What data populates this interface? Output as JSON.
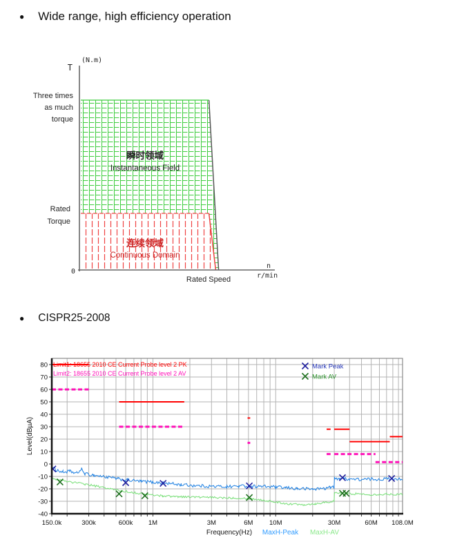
{
  "page": {
    "background": "#ffffff"
  },
  "bullets": [
    {
      "label": "Wide range, high efficiency operation"
    },
    {
      "label": "CISPR25-2008"
    }
  ],
  "torque_figure": {
    "axis_t_label": "T",
    "axis_t_unit": "(N.m)",
    "y_label_top_lines": [
      "Three times",
      "as much",
      "torque"
    ],
    "y_label_rated_lines": [
      "Rated",
      "Torque"
    ],
    "origin_label": "0",
    "x_label_rated": "Rated Speed",
    "x_axis_symbol": "n",
    "x_axis_unit": "r/min",
    "region_instantaneous": {
      "label_cn": "瞬时领域",
      "label_en": "Instantaneous Field",
      "hatch_color": "#3ecc3e",
      "text_color": "#222222"
    },
    "region_continuous": {
      "label_cn": "连续领域",
      "label_en": "Continuous Domain",
      "hatch_color": "#ee4040",
      "text_color": "#cc2222"
    },
    "axis_color": "#666666",
    "boundary_color": "#555555"
  },
  "emc_chart": {
    "limit1_label": "Limit1: 18655 2010 CE Current Probe level 2 PK",
    "limit2_label": "Limit2: 18655 2010 CE Current Probe level 2 AV",
    "legend": [
      {
        "label": "Mark Peak",
        "color": "#2233b8"
      },
      {
        "label": "Mark AV",
        "color": "#2a8f2a"
      }
    ],
    "y_axis_label": "Level(dBµA)",
    "x_axis_label": "Frequency(Hz)",
    "trace_labels": [
      {
        "label": "MaxH-Peak",
        "color": "#2f9bff"
      },
      {
        "label": "MaxH-AV",
        "color": "#8ae88a"
      }
    ],
    "grid_color": "#b3b3b3",
    "border_color": "#8a8a8a"
  },
  "chart_data": [
    {
      "type": "area",
      "title": "Torque vs speed operating regions",
      "xlabel": "n r/min",
      "ylabel": "T (N.m)",
      "x_unit": "fraction of axis length, rated speed = 0.70",
      "y_unit": "multiples of rated torque",
      "regions": [
        {
          "name": "瞬时领域 / Instantaneous Field",
          "torque_top": 3,
          "torque_bottom": 1,
          "envelope": [
            [
              0.007,
              3
            ],
            [
              0.67,
              3
            ],
            [
              0.72,
              0
            ]
          ]
        },
        {
          "name": "连续领域 / Continuous Domain",
          "torque_top": 1,
          "torque_bottom": 0,
          "envelope": [
            [
              0.007,
              1
            ],
            [
              0.67,
              1
            ],
            [
              0.705,
              0
            ]
          ]
        }
      ],
      "key_points": {
        "max_torque_multiple": 3,
        "rated_torque_multiple": 1,
        "rated_speed_fraction": 0.7
      }
    },
    {
      "type": "line",
      "title": "CISPR25-2008 conducted emissions",
      "xlabel": "Frequency(Hz)",
      "ylabel": "Level(dBµA)",
      "x_scale": "log",
      "x_unit": "MHz",
      "x_range": [
        0.15,
        108
      ],
      "x_ticks": [
        {
          "v": 0.15,
          "label": "150.0k"
        },
        {
          "v": 0.3,
          "label": "300k"
        },
        {
          "v": 0.6,
          "label": "600k"
        },
        {
          "v": 1,
          "label": "1M"
        },
        {
          "v": 3,
          "label": "3M"
        },
        {
          "v": 6,
          "label": "6M"
        },
        {
          "v": 10,
          "label": "10M"
        },
        {
          "v": 30,
          "label": "30M"
        },
        {
          "v": 60,
          "label": "60M"
        },
        {
          "v": 108,
          "label": "108.0M"
        }
      ],
      "y_range": [
        -40,
        85
      ],
      "y_ticks": [
        80,
        70,
        60,
        50,
        40,
        30,
        20,
        10,
        0,
        -10,
        -20,
        -30,
        -40
      ],
      "grid": true,
      "limits": [
        {
          "name": "Limit1: 18655 2010 CE Current Probe level 2 PK",
          "color": "#ff0000",
          "style": "solid",
          "segments": [
            [
              0.15,
              0.3,
              80
            ],
            [
              0.53,
              1.8,
              50
            ],
            [
              5.9,
              6.2,
              37
            ],
            [
              26,
              28,
              28
            ],
            [
              30,
              40,
              28
            ],
            [
              40,
              85,
              18
            ],
            [
              85,
              108,
              22
            ]
          ]
        },
        {
          "name": "Limit2: 18655 2010 CE Current Probe level 2 AV",
          "color": "#ff10b8",
          "style": "dashed",
          "segments": [
            [
              0.15,
              0.3,
              60
            ],
            [
              0.53,
              1.8,
              30
            ],
            [
              5.9,
              6.2,
              17
            ],
            [
              26,
              28,
              8
            ],
            [
              30,
              65,
              8
            ],
            [
              65,
              108,
              1.5
            ]
          ]
        }
      ],
      "series": [
        {
          "name": "MaxH-Peak",
          "color": "#2b87e3",
          "noise_db": 1.3,
          "points": [
            [
              0.15,
              -3
            ],
            [
              0.165,
              -5
            ],
            [
              0.185,
              -6.5
            ],
            [
              0.21,
              -6
            ],
            [
              0.24,
              -7.5
            ],
            [
              0.262,
              -4.2
            ],
            [
              0.28,
              -8
            ],
            [
              0.33,
              -9
            ],
            [
              0.42,
              -10.5
            ],
            [
              0.52,
              -12
            ],
            [
              0.62,
              -13
            ],
            [
              0.8,
              -14
            ],
            [
              1.0,
              -14.6
            ],
            [
              1.3,
              -15.6
            ],
            [
              1.7,
              -16.6
            ],
            [
              2.2,
              -17.4
            ],
            [
              3,
              -18
            ],
            [
              4,
              -18.2
            ],
            [
              5,
              -17.8
            ],
            [
              6,
              -17.6
            ],
            [
              7,
              -18
            ],
            [
              8.5,
              -18.2
            ],
            [
              10,
              -18.6
            ],
            [
              12,
              -19.2
            ],
            [
              15,
              -19.8
            ],
            [
              20,
              -20.2
            ],
            [
              25,
              -19.6
            ],
            [
              28,
              -18.8
            ],
            [
              29.9,
              -18.8
            ],
            [
              30.1,
              -12
            ],
            [
              33,
              -11.4
            ],
            [
              40,
              -12
            ],
            [
              50,
              -12.6
            ],
            [
              60,
              -12.2
            ],
            [
              75,
              -12.2
            ],
            [
              90,
              -11.6
            ],
            [
              108,
              -12
            ]
          ]
        },
        {
          "name": "MaxH-AV",
          "color": "#7ee07e",
          "noise_db": 0.8,
          "points": [
            [
              0.15,
              -12
            ],
            [
              0.18,
              -13.2
            ],
            [
              0.22,
              -14.6
            ],
            [
              0.28,
              -16.2
            ],
            [
              0.36,
              -18.2
            ],
            [
              0.45,
              -20
            ],
            [
              0.55,
              -21.6
            ],
            [
              0.7,
              -23
            ],
            [
              0.9,
              -24.6
            ],
            [
              1.2,
              -25.6
            ],
            [
              1.6,
              -26.2
            ],
            [
              2.2,
              -26.6
            ],
            [
              3,
              -27
            ],
            [
              4.5,
              -27.2
            ],
            [
              6,
              -27.6
            ],
            [
              8,
              -29.2
            ],
            [
              10,
              -30.6
            ],
            [
              13,
              -32.2
            ],
            [
              17,
              -32.6
            ],
            [
              21,
              -32
            ],
            [
              26,
              -30.6
            ],
            [
              29.9,
              -30.2
            ],
            [
              30.1,
              -23.4
            ],
            [
              35,
              -23.6
            ],
            [
              45,
              -24
            ],
            [
              60,
              -24.6
            ],
            [
              80,
              -24.2
            ],
            [
              108,
              -24.6
            ]
          ]
        }
      ],
      "marks": [
        {
          "name": "Mark Peak",
          "color": "#1f1f9e",
          "points": [
            [
              0.153,
              -4
            ],
            [
              0.6,
              -15
            ],
            [
              1.21,
              -15.6
            ],
            [
              6.1,
              -17.6
            ],
            [
              35,
              -11
            ],
            [
              88,
              -11.6
            ]
          ]
        },
        {
          "name": "Mark AV",
          "color": "#1d6e1d",
          "points": [
            [
              0.175,
              -14.5
            ],
            [
              0.53,
              -24
            ],
            [
              0.86,
              -25.5
            ],
            [
              6.1,
              -27
            ],
            [
              35,
              -23.6
            ],
            [
              37.5,
              -23.6
            ]
          ]
        }
      ],
      "legend_position": "top-right"
    }
  ]
}
